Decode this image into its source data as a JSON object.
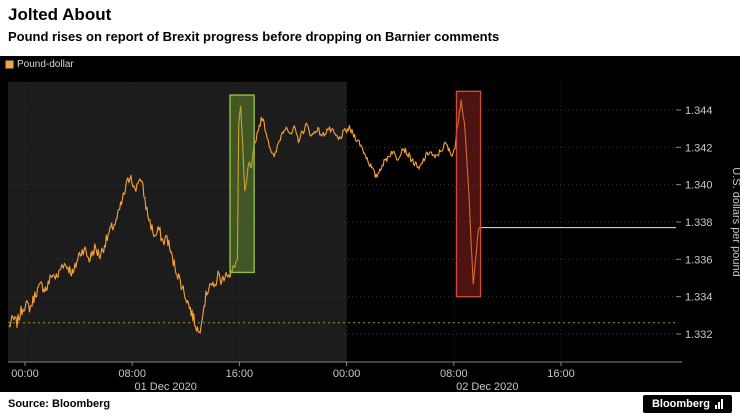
{
  "header": {
    "title": "Jolted About",
    "subtitle": "Pound rises on report of Brexit progress before dropping on Barnier comments"
  },
  "legend": {
    "label": "Pound-dollar",
    "color": "#f9a13a"
  },
  "footer": {
    "source": "Source: Bloomberg",
    "logo": "Bloomberg"
  },
  "chart_data": {
    "type": "line",
    "title": "Pound-dollar intraday exchange rate, 01-02 Dec 2020",
    "ylabel": "U.S. dollars per pound",
    "ylim": [
      1.3305,
      1.3455
    ],
    "grid": true,
    "y_ticks": [
      {
        "value": 1.344,
        "label": "1.344"
      },
      {
        "value": 1.342,
        "label": "1.342"
      },
      {
        "value": 1.34,
        "label": "1.340"
      },
      {
        "value": 1.338,
        "label": "1.338"
      },
      {
        "value": 1.336,
        "label": "1.336"
      },
      {
        "value": 1.334,
        "label": "1.334"
      },
      {
        "value": 1.332,
        "label": "1.332"
      }
    ],
    "x_ticks": [
      {
        "hour": 0,
        "label": "00:00"
      },
      {
        "hour": 8,
        "label": "08:00"
      },
      {
        "hour": 16,
        "label": "16:00"
      },
      {
        "hour": 24,
        "label": "00:00"
      },
      {
        "hour": 32,
        "label": "08:00"
      },
      {
        "hour": 40,
        "label": "16:00"
      }
    ],
    "x_dates": [
      {
        "hour": 10.5,
        "label": "01 Dec 2020"
      },
      {
        "hour": 34.5,
        "label": "02 Dec 2020"
      }
    ],
    "session_shade": {
      "from_hour": -1.3,
      "to_hour": 24,
      "color": "#1c1c1c"
    },
    "reference_lines": [
      {
        "name": "prior-close-line",
        "value": 1.3326,
        "color": "#ac9714",
        "style": "dashed"
      },
      {
        "name": "last-price-line",
        "value": 1.3377,
        "color": "#e8e8e8",
        "style": "solid",
        "from_hour": 33.9
      }
    ],
    "highlight_boxes": [
      {
        "name": "brexit-progress-spike",
        "from_hour": 15.3,
        "to_hour": 17.1,
        "low": 1.3353,
        "high": 1.3448,
        "fill": "rgba(118,168,45,0.42)",
        "stroke": "#8fbf3f"
      },
      {
        "name": "barnier-comments-drop",
        "from_hour": 32.2,
        "to_hour": 34.0,
        "low": 1.334,
        "high": 1.345,
        "fill": "rgba(168,42,38,0.45)",
        "stroke": "#d2493a"
      }
    ],
    "series": [
      {
        "name": "Pound-dollar",
        "color": "#f9a13a",
        "points": [
          [
            -1.2,
            1.3324
          ],
          [
            -0.9,
            1.3328
          ],
          [
            -0.6,
            1.3326
          ],
          [
            -0.3,
            1.3332
          ],
          [
            0,
            1.3336
          ],
          [
            0.4,
            1.3334
          ],
          [
            0.8,
            1.3342
          ],
          [
            1.2,
            1.3346
          ],
          [
            1.6,
            1.3344
          ],
          [
            2,
            1.3352
          ],
          [
            2.4,
            1.335
          ],
          [
            2.8,
            1.3358
          ],
          [
            3.2,
            1.3356
          ],
          [
            3.6,
            1.3352
          ],
          [
            4,
            1.3362
          ],
          [
            4.4,
            1.3366
          ],
          [
            4.8,
            1.336
          ],
          [
            5.2,
            1.3366
          ],
          [
            5.6,
            1.3362
          ],
          [
            6,
            1.3369
          ],
          [
            6.4,
            1.3376
          ],
          [
            6.8,
            1.338
          ],
          [
            7.2,
            1.339
          ],
          [
            7.6,
            1.34
          ],
          [
            7.9,
            1.3406
          ],
          [
            8.2,
            1.3396
          ],
          [
            8.5,
            1.3404
          ],
          [
            8.8,
            1.3398
          ],
          [
            9.1,
            1.3386
          ],
          [
            9.4,
            1.3378
          ],
          [
            9.7,
            1.3372
          ],
          [
            10,
            1.3376
          ],
          [
            10.3,
            1.3369
          ],
          [
            10.6,
            1.3372
          ],
          [
            11,
            1.336
          ],
          [
            11.4,
            1.3352
          ],
          [
            11.8,
            1.3344
          ],
          [
            12.2,
            1.3336
          ],
          [
            12.6,
            1.3328
          ],
          [
            13,
            1.332
          ],
          [
            13.2,
            1.333
          ],
          [
            13.5,
            1.334
          ],
          [
            13.8,
            1.3348
          ],
          [
            14.1,
            1.3344
          ],
          [
            14.4,
            1.3352
          ],
          [
            14.7,
            1.3348
          ],
          [
            15,
            1.3354
          ],
          [
            15.3,
            1.335
          ],
          [
            15.6,
            1.3356
          ],
          [
            15.85,
            1.336
          ],
          [
            15.95,
            1.3432
          ],
          [
            16.1,
            1.3442
          ],
          [
            16.25,
            1.342
          ],
          [
            16.4,
            1.3395
          ],
          [
            16.55,
            1.3402
          ],
          [
            16.7,
            1.3412
          ],
          [
            16.9,
            1.3408
          ],
          [
            17.1,
            1.342
          ],
          [
            17.4,
            1.343
          ],
          [
            17.7,
            1.3436
          ],
          [
            18,
            1.3428
          ],
          [
            18.3,
            1.342
          ],
          [
            18.6,
            1.3414
          ],
          [
            18.9,
            1.3422
          ],
          [
            19.2,
            1.3428
          ],
          [
            19.5,
            1.3432
          ],
          [
            19.8,
            1.3426
          ],
          [
            20.1,
            1.343
          ],
          [
            20.4,
            1.3424
          ],
          [
            20.7,
            1.3428
          ],
          [
            21,
            1.3432
          ],
          [
            21.4,
            1.3426
          ],
          [
            21.8,
            1.343
          ],
          [
            22.2,
            1.3426
          ],
          [
            22.6,
            1.343
          ],
          [
            23,
            1.3428
          ],
          [
            23.4,
            1.3424
          ],
          [
            23.8,
            1.3428
          ],
          [
            24.2,
            1.343
          ],
          [
            24.6,
            1.3426
          ],
          [
            25,
            1.3422
          ],
          [
            25.4,
            1.3416
          ],
          [
            25.8,
            1.341
          ],
          [
            26.2,
            1.3404
          ],
          [
            26.6,
            1.341
          ],
          [
            27,
            1.3414
          ],
          [
            27.4,
            1.3418
          ],
          [
            27.8,
            1.3414
          ],
          [
            28.2,
            1.342
          ],
          [
            28.6,
            1.3416
          ],
          [
            29,
            1.3412
          ],
          [
            29.4,
            1.3408
          ],
          [
            29.8,
            1.3414
          ],
          [
            30.2,
            1.3418
          ],
          [
            30.6,
            1.3414
          ],
          [
            31,
            1.3418
          ],
          [
            31.4,
            1.3422
          ],
          [
            31.8,
            1.3416
          ],
          [
            32.1,
            1.342
          ],
          [
            32.35,
            1.3436
          ],
          [
            32.55,
            1.3446
          ],
          [
            32.7,
            1.3438
          ],
          [
            32.85,
            1.3428
          ],
          [
            33,
            1.341
          ],
          [
            33.15,
            1.3392
          ],
          [
            33.3,
            1.3368
          ],
          [
            33.45,
            1.3348
          ],
          [
            33.6,
            1.3358
          ],
          [
            33.75,
            1.337
          ],
          [
            33.9,
            1.3377
          ]
        ]
      }
    ]
  }
}
